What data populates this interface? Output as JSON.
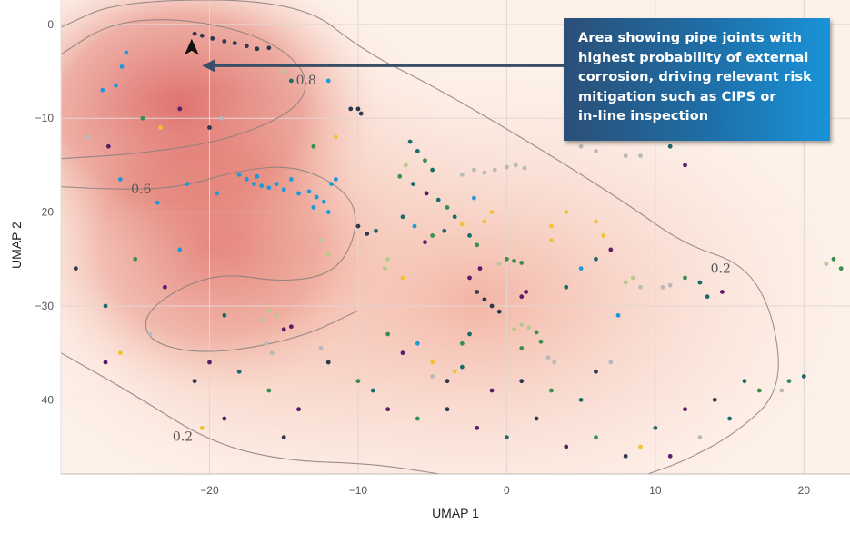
{
  "chart_data": {
    "type": "scatter",
    "xlabel": "UMAP 1",
    "ylabel": "UMAP 2",
    "xlim": [
      -30,
      23.1
    ],
    "ylim": [
      -47.9,
      2.6
    ],
    "xticks": [
      -20,
      -10,
      0,
      10,
      20
    ],
    "yticks": [
      0,
      -10,
      -20,
      -30,
      -40
    ],
    "grid": true,
    "legend": "none",
    "density_background": "red probability heatmap, highest top-left",
    "colors": [
      "#1f9ad9",
      "#1b6b6b",
      "#3a8f4e",
      "#5b1d6b",
      "#2c3a4f",
      "#f1c232",
      "#b9b9b9",
      "#b7c98c"
    ],
    "contours": [
      {
        "level": "0.8",
        "label_at": [
          -13.5,
          -5.9
        ],
        "path": [
          [
            -30,
            -3.2
          ],
          [
            -26.7,
            0.2
          ],
          [
            -21.8,
            0.7
          ],
          [
            -16.3,
            -1.3
          ],
          [
            -13.3,
            -5.1
          ],
          [
            -13.9,
            -9
          ],
          [
            -18.8,
            -12.4
          ],
          [
            -24.9,
            -13.8
          ],
          [
            -30,
            -14.3
          ]
        ]
      },
      {
        "level": "0.6",
        "label_at": [
          -24.6,
          -17.5
        ],
        "path": [
          [
            -30,
            -17.3
          ],
          [
            -26,
            -17.6
          ],
          [
            -22,
            -17.4
          ],
          [
            -18,
            -15.5
          ],
          [
            -14,
            -15
          ],
          [
            -10.5,
            -18
          ],
          [
            -10,
            -22
          ],
          [
            -11.5,
            -26.5
          ],
          [
            -15,
            -27.5
          ],
          [
            -19,
            -26.5
          ],
          [
            -22,
            -28
          ],
          [
            -24.5,
            -31
          ],
          [
            -24,
            -34
          ],
          [
            -20,
            -35.2
          ],
          [
            -14,
            -33.5
          ],
          [
            -10,
            -30.5
          ]
        ]
      },
      {
        "level": "0.2",
        "label_at": [
          14.4,
          -26
        ],
        "path": [
          [
            -30,
            -0.3
          ],
          [
            -26,
            2.6
          ],
          [
            -14,
            2.6
          ],
          [
            -9.5,
            -3
          ],
          [
            -5,
            -6.5
          ],
          [
            2,
            -13
          ],
          [
            8,
            -19
          ],
          [
            12,
            -23.5
          ],
          [
            16,
            -25.5
          ],
          [
            18,
            -31
          ],
          [
            18.5,
            -39
          ],
          [
            15.5,
            -43.5
          ],
          [
            12,
            -46.5
          ],
          [
            9.5,
            -47.9
          ]
        ]
      },
      {
        "level": "0.2",
        "label_at": [
          -21.8,
          -43.9
        ],
        "path": [
          [
            -30,
            -35
          ],
          [
            -25,
            -39.5
          ],
          [
            -20,
            -44.5
          ],
          [
            -15,
            -46.5
          ],
          [
            -9,
            -46.8
          ],
          [
            -4.5,
            -47.9
          ]
        ]
      }
    ],
    "points": [
      [
        -20.5,
        -1.2,
        4
      ],
      [
        -19.8,
        -1.5,
        4
      ],
      [
        -19,
        -1.8,
        4
      ],
      [
        -18.3,
        -2,
        4
      ],
      [
        -17.5,
        -2.3,
        4
      ],
      [
        -16.8,
        -2.6,
        4
      ],
      [
        -16,
        -2.5,
        4
      ],
      [
        -21,
        -1,
        4
      ],
      [
        -25.6,
        -3,
        0
      ],
      [
        -25.9,
        -4.5,
        0
      ],
      [
        -26.3,
        -6.5,
        0
      ],
      [
        -27.2,
        -7,
        0
      ],
      [
        -24.5,
        -10,
        2
      ],
      [
        -22,
        -9,
        3
      ],
      [
        -20,
        -11,
        4
      ],
      [
        -19.2,
        -10,
        6
      ],
      [
        -23.3,
        -11,
        5
      ],
      [
        -28.2,
        -12,
        6
      ],
      [
        -26.8,
        -13,
        3
      ],
      [
        -12,
        -6,
        0
      ],
      [
        -10.5,
        -9,
        4
      ],
      [
        -9.8,
        -9.5,
        4
      ],
      [
        -10,
        -9,
        4
      ],
      [
        -11.5,
        -12,
        5
      ],
      [
        -13,
        -13,
        2
      ],
      [
        -14.5,
        -6,
        1
      ],
      [
        -15,
        -5,
        7
      ],
      [
        -17.5,
        -16.5,
        0
      ],
      [
        -17,
        -17,
        0
      ],
      [
        -16.5,
        -17.2,
        0
      ],
      [
        -16,
        -17.4,
        0
      ],
      [
        -15.5,
        -17,
        0
      ],
      [
        -15,
        -17.6,
        0
      ],
      [
        -14,
        -18,
        0
      ],
      [
        -13.3,
        -17.8,
        0
      ],
      [
        -12.8,
        -18.4,
        0
      ],
      [
        -12.3,
        -18.9,
        0
      ],
      [
        -11.8,
        -17,
        0
      ],
      [
        -11.5,
        -16.5,
        0
      ],
      [
        -13,
        -19.5,
        0
      ],
      [
        -12,
        -20,
        0
      ],
      [
        -14.5,
        -16.5,
        0
      ],
      [
        -16.8,
        -16.2,
        0
      ],
      [
        -18,
        -16,
        0
      ],
      [
        -19.5,
        -18,
        0
      ],
      [
        -21.5,
        -17,
        0
      ],
      [
        -23.5,
        -19,
        0
      ],
      [
        -26,
        -16.5,
        0
      ],
      [
        -6.5,
        -12.5,
        1
      ],
      [
        -6,
        -13.5,
        1
      ],
      [
        -5.5,
        -14.5,
        2
      ],
      [
        -5,
        -15.5,
        1
      ],
      [
        -6.8,
        -15,
        7
      ],
      [
        -7.2,
        -16.2,
        2
      ],
      [
        -6.3,
        -17,
        1
      ],
      [
        -5.4,
        -18,
        3
      ],
      [
        -4.6,
        -18.7,
        1
      ],
      [
        -4,
        -19.5,
        2
      ],
      [
        -3.5,
        -20.5,
        1
      ],
      [
        -3,
        -21.3,
        5
      ],
      [
        -4.2,
        -22,
        1
      ],
      [
        -5,
        -22.5,
        2
      ],
      [
        -5.5,
        -23.2,
        3
      ],
      [
        -6.2,
        -21.5,
        0
      ],
      [
        -7,
        -20.5,
        1
      ],
      [
        -2.5,
        -22.5,
        1
      ],
      [
        -2,
        -23.5,
        2
      ],
      [
        -1.5,
        -21,
        5
      ],
      [
        -1,
        -20,
        5
      ],
      [
        -2.2,
        -18.5,
        0
      ],
      [
        -10,
        -21.5,
        4
      ],
      [
        -9.4,
        -22.3,
        4
      ],
      [
        -8.8,
        -22,
        1
      ],
      [
        -12.5,
        -23,
        7
      ],
      [
        -12,
        -24.5,
        7
      ],
      [
        -8,
        -25,
        7
      ],
      [
        -8.2,
        -26,
        7
      ],
      [
        -1.5,
        -15.8,
        6
      ],
      [
        -0.8,
        -15.5,
        6
      ],
      [
        0,
        -15.2,
        6
      ],
      [
        0.6,
        -15,
        6
      ],
      [
        1.2,
        -15.3,
        6
      ],
      [
        -2.2,
        -15.5,
        6
      ],
      [
        -3,
        -16,
        6
      ],
      [
        -2,
        -28.5,
        4
      ],
      [
        -1.5,
        -29.3,
        4
      ],
      [
        -1,
        -30,
        4
      ],
      [
        -0.5,
        -30.6,
        4
      ],
      [
        -2.5,
        -27,
        3
      ],
      [
        -1.8,
        -26,
        3
      ],
      [
        1,
        -29,
        3
      ],
      [
        1.3,
        -28.5,
        3
      ],
      [
        0.5,
        -32.5,
        7
      ],
      [
        1,
        -32,
        7
      ],
      [
        1.5,
        -32.3,
        7
      ],
      [
        2,
        -32.8,
        2
      ],
      [
        2.3,
        -33.8,
        2
      ],
      [
        1,
        -34.5,
        2
      ],
      [
        2.8,
        -35.5,
        6
      ],
      [
        3.2,
        -36,
        6
      ],
      [
        -2.5,
        -33,
        1
      ],
      [
        -3,
        -34,
        2
      ],
      [
        0.5,
        -25.2,
        2
      ],
      [
        1,
        -25.4,
        2
      ],
      [
        0,
        -25,
        2
      ],
      [
        -0.5,
        -25.5,
        7
      ],
      [
        -16,
        -30.5,
        7
      ],
      [
        -15.5,
        -31,
        7
      ],
      [
        -16.5,
        -31.5,
        7
      ],
      [
        -15,
        -32.5,
        3
      ],
      [
        -14.5,
        -32.2,
        3
      ],
      [
        -16.2,
        -34,
        6
      ],
      [
        -15.8,
        -35,
        6
      ],
      [
        -12.5,
        -34.5,
        6
      ],
      [
        -19,
        -31,
        1
      ],
      [
        3,
        -23,
        5
      ],
      [
        4,
        -20,
        5
      ],
      [
        6,
        -21,
        5
      ],
      [
        6.5,
        -22.5,
        5
      ],
      [
        3,
        -21.5,
        5
      ],
      [
        -7,
        -27,
        5
      ],
      [
        -5,
        -36,
        5
      ],
      [
        -3.5,
        -37,
        5
      ],
      [
        8,
        -27.5,
        7
      ],
      [
        8.5,
        -27,
        7
      ],
      [
        9,
        -28,
        6
      ],
      [
        10.5,
        -28,
        6
      ],
      [
        11,
        -27.8,
        6
      ],
      [
        12,
        -27,
        2
      ],
      [
        13,
        -27.5,
        1
      ],
      [
        13.5,
        -29,
        1
      ],
      [
        14.5,
        -28.5,
        3
      ],
      [
        5,
        -13,
        6
      ],
      [
        6,
        -13.5,
        6
      ],
      [
        8,
        -14,
        6
      ],
      [
        9,
        -14,
        6
      ],
      [
        12,
        -15,
        3
      ],
      [
        11,
        -13,
        1
      ],
      [
        6,
        -25,
        1
      ],
      [
        7,
        -24,
        3
      ],
      [
        5,
        -26,
        0
      ],
      [
        4,
        -28,
        1
      ],
      [
        7.5,
        -31,
        0
      ],
      [
        -9,
        -39,
        1
      ],
      [
        -8,
        -41,
        3
      ],
      [
        -6,
        -42,
        2
      ],
      [
        -4,
        -41,
        4
      ],
      [
        -2,
        -43,
        3
      ],
      [
        0,
        -44,
        1
      ],
      [
        2,
        -42,
        4
      ],
      [
        4,
        -45,
        3
      ],
      [
        6,
        -44,
        2
      ],
      [
        8,
        -46,
        4
      ],
      [
        9,
        -45,
        5
      ],
      [
        10,
        -43,
        1
      ],
      [
        12,
        -41,
        3
      ],
      [
        14,
        -40,
        4
      ],
      [
        15,
        -42,
        1
      ],
      [
        16,
        -38,
        1
      ],
      [
        17,
        -39,
        2
      ],
      [
        13,
        -44,
        6
      ],
      [
        11,
        -46,
        3
      ],
      [
        -20,
        -36,
        3
      ],
      [
        -21,
        -38,
        4
      ],
      [
        -18,
        -37,
        1
      ],
      [
        -16,
        -39,
        2
      ],
      [
        -14,
        -41,
        3
      ],
      [
        -12,
        -36,
        4
      ],
      [
        -10,
        -38,
        2
      ],
      [
        -19,
        -42,
        3
      ],
      [
        -15,
        -44,
        4
      ],
      [
        -20.5,
        -43,
        5
      ],
      [
        -26,
        -35,
        5
      ],
      [
        -27,
        -36,
        3
      ],
      [
        -29,
        -26,
        4
      ],
      [
        -25,
        -25,
        2
      ],
      [
        -22,
        -24,
        0
      ],
      [
        -23,
        -28,
        3
      ],
      [
        -27,
        -30,
        1
      ],
      [
        -24,
        -33,
        6
      ],
      [
        -5,
        -37.5,
        6
      ],
      [
        -4,
        -38,
        4
      ],
      [
        -3,
        -36.5,
        1
      ],
      [
        -6,
        -34,
        0
      ],
      [
        -7,
        -35,
        3
      ],
      [
        -8,
        -33,
        2
      ],
      [
        -1,
        -39,
        3
      ],
      [
        1,
        -38,
        4
      ],
      [
        3,
        -39,
        2
      ],
      [
        5,
        -40,
        1
      ],
      [
        6,
        -37,
        4
      ],
      [
        7,
        -36,
        6
      ],
      [
        22,
        -25,
        2
      ],
      [
        22.5,
        -26,
        2
      ],
      [
        21.5,
        -25.5,
        7
      ],
      [
        19,
        -38,
        2
      ],
      [
        20,
        -37.5,
        1
      ],
      [
        18.5,
        -39,
        6
      ]
    ]
  },
  "annotation": {
    "text": "Area showing pipe joints with highest probability of external corrosion, driving relevant risk mitigation such as CIPS or in-line inspection",
    "lines": [
      "Area showing pipe joints with",
      "highest probability of external",
      "corrosion, driving relevant risk",
      "mitigation such as CIPS or",
      "in-line inspection"
    ],
    "points_to": [
      -20.5,
      -4.4
    ]
  }
}
